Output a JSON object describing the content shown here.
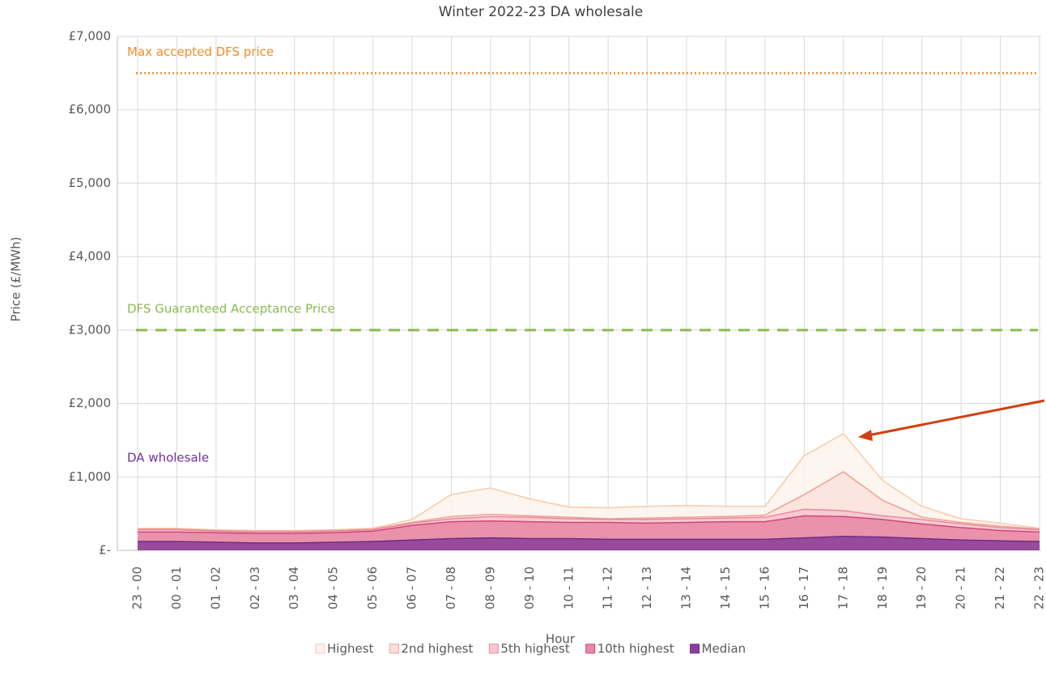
{
  "chart_data": {
    "type": "area",
    "title": "Winter 2022-23 DA wholesale",
    "x_label": "Hour",
    "y_label": "Price (£/MWh)",
    "categories": [
      "23 - 00",
      "00 - 01",
      "01 - 02",
      "02 - 03",
      "03 - 04",
      "04 - 05",
      "05 - 06",
      "06 - 07",
      "07 - 08",
      "08 - 09",
      "09 - 10",
      "10 - 11",
      "11 - 12",
      "12 - 13",
      "13 - 14",
      "14 - 15",
      "15 - 16",
      "16 - 17",
      "17 - 18",
      "18 - 19",
      "19 - 20",
      "20 - 21",
      "21 - 22",
      "22 - 23"
    ],
    "series": [
      {
        "name": "Highest",
        "color": "#f8cba8",
        "fill": "#fdf3ec",
        "values": [
          300,
          300,
          280,
          270,
          270,
          280,
          300,
          420,
          760,
          850,
          700,
          590,
          580,
          600,
          610,
          600,
          600,
          1290,
          1590,
          950,
          600,
          430,
          370,
          300
        ]
      },
      {
        "name": "2nd highest",
        "color": "#f0a090",
        "fill": "#fbe0dc",
        "values": [
          290,
          290,
          270,
          260,
          260,
          270,
          290,
          380,
          460,
          490,
          470,
          450,
          430,
          440,
          450,
          460,
          480,
          760,
          1070,
          680,
          450,
          380,
          330,
          290
        ]
      },
      {
        "name": "5th highest",
        "color": "#e88aa0",
        "fill": "#f7c6d0",
        "values": [
          280,
          280,
          260,
          250,
          250,
          260,
          280,
          370,
          430,
          460,
          450,
          430,
          420,
          420,
          430,
          440,
          450,
          560,
          540,
          470,
          420,
          360,
          310,
          280
        ]
      },
      {
        "name": "10th highest",
        "color": "#d0467a",
        "fill": "#e887a5",
        "values": [
          250,
          250,
          240,
          230,
          230,
          240,
          260,
          340,
          390,
          400,
          390,
          380,
          380,
          370,
          380,
          390,
          390,
          470,
          460,
          420,
          360,
          310,
          270,
          250
        ]
      },
      {
        "name": "Median",
        "color": "#6f2d85",
        "fill": "#8a3d99",
        "values": [
          120,
          120,
          110,
          100,
          100,
          110,
          120,
          140,
          160,
          170,
          160,
          160,
          150,
          150,
          150,
          150,
          150,
          170,
          190,
          180,
          160,
          140,
          130,
          120
        ]
      }
    ],
    "reference_lines": [
      {
        "label": "Max accepted DFS price",
        "value": 6500,
        "color": "#f28c28",
        "style": "dotted"
      },
      {
        "label": "DFS Guaranteed Acceptance Price",
        "value": 3000,
        "color": "#8bbb4f",
        "style": "dashed"
      }
    ],
    "annotations": [
      {
        "text": "DA wholesale",
        "color": "#7030a0"
      }
    ],
    "ylim": [
      0,
      7000
    ],
    "yticks": [
      {
        "value": 0,
        "label": "£-"
      },
      {
        "value": 1000,
        "label": "£1,000"
      },
      {
        "value": 2000,
        "label": "£2,000"
      },
      {
        "value": 3000,
        "label": "£3,000"
      },
      {
        "value": 4000,
        "label": "£4,000"
      },
      {
        "value": 5000,
        "label": "£5,000"
      },
      {
        "value": 6000,
        "label": "£6,000"
      },
      {
        "value": 7000,
        "label": "£7,000"
      }
    ],
    "grid": true,
    "legend": "bottom"
  }
}
